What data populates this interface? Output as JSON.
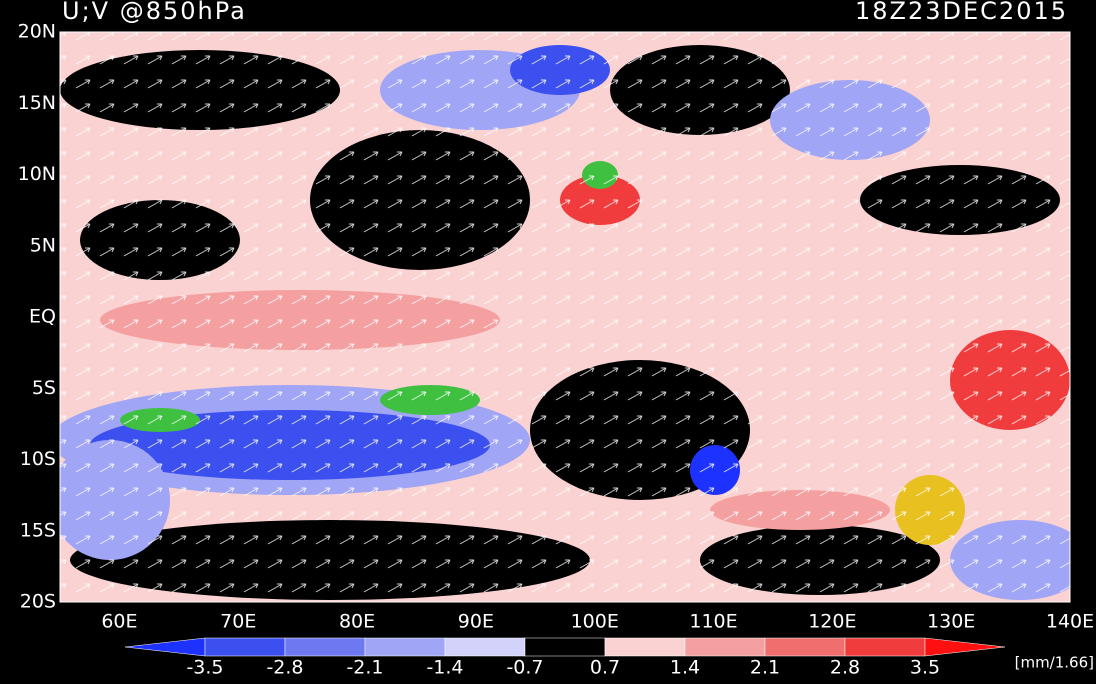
{
  "map": {
    "title": "U;V @850hPa",
    "time": "18Z23DEC2015",
    "lat_labels": [
      "20N",
      "15N",
      "10N",
      "5N",
      "EQ",
      "5S",
      "10S",
      "15S",
      "20S"
    ],
    "lon_labels": [
      "60E",
      "70E",
      "80E",
      "90E",
      "100E",
      "110E",
      "120E",
      "130E",
      "140E"
    ],
    "colorbar": {
      "labels": [
        "-3.5",
        "-2.8",
        "-2.1",
        "-1.4",
        "-0.7",
        "0.7",
        "1.4",
        "2.1",
        "2.8",
        "3.5"
      ],
      "colors": [
        "#1e32ff",
        "#3c50f0",
        "#6e78f0",
        "#a0a5f5",
        "#d2d2fa",
        "#000000",
        "#fad2d2",
        "#f5a0a0",
        "#f06e6e",
        "#f03c3c",
        "#ff1010"
      ],
      "unit": "[mm/1.66]"
    }
  }
}
